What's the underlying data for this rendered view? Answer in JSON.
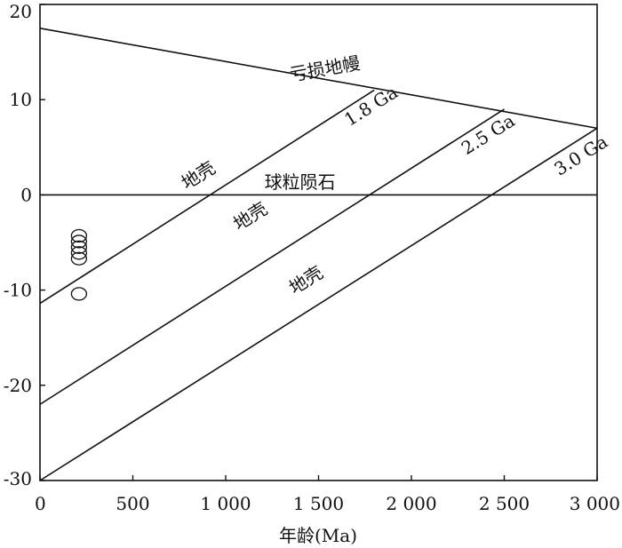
{
  "chart_data": {
    "type": "line",
    "xlabel": "年龄(Ma)",
    "ylabel": "",
    "xlim": [
      0,
      3000
    ],
    "ylim": [
      -30,
      20
    ],
    "x_ticks": [
      0,
      500,
      1000,
      1500,
      2000,
      2500,
      3000
    ],
    "x_tick_labels": [
      "0",
      "500",
      "1 000",
      "1 500",
      "2 000",
      "2 500",
      "3 000"
    ],
    "y_ticks": [
      20,
      10,
      0,
      -10,
      -20,
      -30
    ],
    "y_tick_labels": [
      "20",
      "10",
      "0",
      "-10",
      "-20",
      "-30"
    ],
    "grid": false,
    "series": [
      {
        "name": "亏损地幔",
        "x": [
          0,
          3000
        ],
        "y": [
          17.5,
          7
        ]
      },
      {
        "name": "球粒陨石",
        "x": [
          0,
          3000
        ],
        "y": [
          0,
          0
        ]
      },
      {
        "name": "1.8 Ga",
        "x": [
          0,
          1800
        ],
        "y": [
          -11.4,
          11
        ]
      },
      {
        "name": "2.5 Ga",
        "x": [
          0,
          2500
        ],
        "y": [
          -22,
          9
        ]
      },
      {
        "name": "3.0 Ga",
        "x": [
          0,
          3000
        ],
        "y": [
          -30,
          7
        ]
      }
    ],
    "points": [
      {
        "x": 210,
        "y": -4.3
      },
      {
        "x": 210,
        "y": -4.9
      },
      {
        "x": 210,
        "y": -5.5
      },
      {
        "x": 210,
        "y": -6.1
      },
      {
        "x": 210,
        "y": -6.7
      },
      {
        "x": 210,
        "y": -10.4
      }
    ],
    "annotations": [
      {
        "text": "亏损地幔",
        "x": 1540,
        "y": 12.6,
        "angle": -10
      },
      {
        "text": "球粒陨石",
        "x": 1400,
        "y": 0.7,
        "angle": 0
      },
      {
        "text": "1.8 Ga",
        "x": 1800,
        "y": 8.8,
        "angle": -32
      },
      {
        "text": "2.5 Ga",
        "x": 2430,
        "y": 5.8,
        "angle": -32
      },
      {
        "text": "3.0 Ga",
        "x": 2930,
        "y": 3.6,
        "angle": -32
      },
      {
        "text": "地壳",
        "x": 870,
        "y": 1.5,
        "angle": -32
      },
      {
        "text": "地壳",
        "x": 1150,
        "y": -2.8,
        "angle": -32
      },
      {
        "text": "地壳",
        "x": 1450,
        "y": -9.5,
        "angle": -32
      }
    ]
  }
}
